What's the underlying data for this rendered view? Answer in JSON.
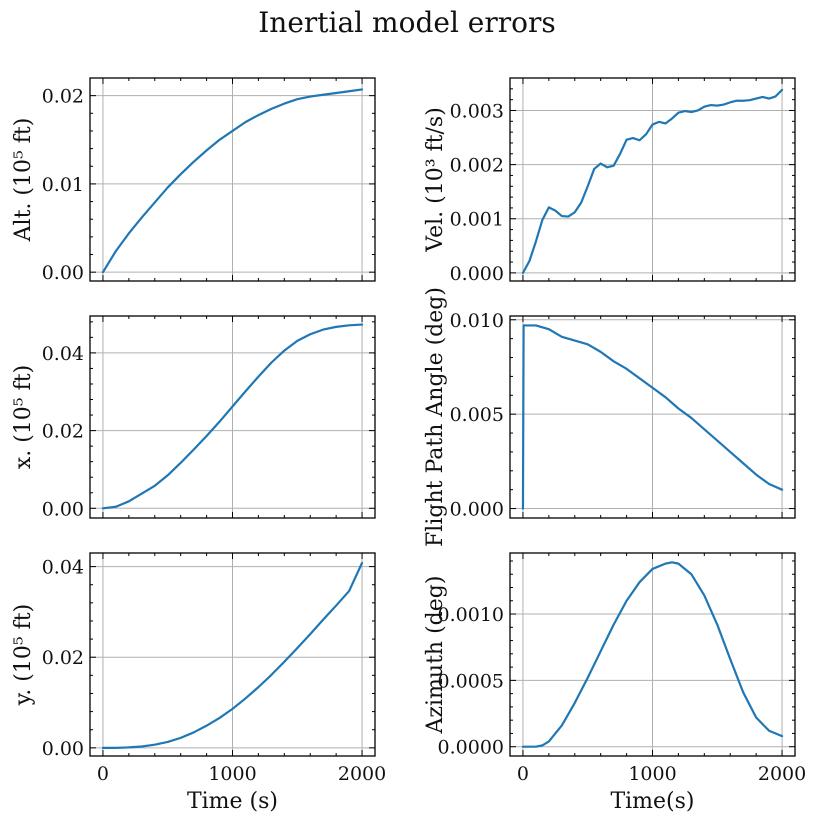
{
  "title": "Inertial model errors",
  "colors": {
    "line": "#1f77b4",
    "grid": "#b0b0b0",
    "axes": "#000000"
  },
  "chart_data": [
    {
      "type": "line",
      "ylabel": "Alt. (10⁵ ft)",
      "xlabel": "",
      "xlim": [
        -100,
        2100
      ],
      "ylim": [
        -0.001,
        0.022
      ],
      "xticks": [
        0,
        1000,
        2000
      ],
      "xticklabels": [
        "",
        "",
        ""
      ],
      "yticks": [
        0.0,
        0.01,
        0.02
      ],
      "yticklabels": [
        "0.00",
        "0.01",
        "0.02"
      ],
      "x": [
        0,
        100,
        200,
        300,
        400,
        500,
        600,
        700,
        800,
        900,
        1000,
        1100,
        1200,
        1300,
        1400,
        1500,
        1600,
        1700,
        1800,
        1900,
        2000
      ],
      "y": [
        0.0,
        0.0024,
        0.0044,
        0.0062,
        0.0079,
        0.0096,
        0.0111,
        0.0125,
        0.0138,
        0.015,
        0.016,
        0.017,
        0.0178,
        0.0185,
        0.0191,
        0.0196,
        0.0199,
        0.0201,
        0.0203,
        0.0205,
        0.0207
      ]
    },
    {
      "type": "line",
      "ylabel": "Vel. (10³ ft/s)",
      "xlabel": "",
      "xlim": [
        -100,
        2100
      ],
      "ylim": [
        -0.00015,
        0.0036
      ],
      "xticks": [
        0,
        1000,
        2000
      ],
      "xticklabels": [
        "",
        "",
        ""
      ],
      "yticks": [
        0.0,
        0.001,
        0.002,
        0.003
      ],
      "yticklabels": [
        "0.000",
        "0.001",
        "0.002",
        "0.003"
      ],
      "x": [
        0,
        50,
        100,
        150,
        200,
        250,
        300,
        350,
        400,
        450,
        500,
        550,
        600,
        650,
        700,
        750,
        800,
        850,
        900,
        950,
        1000,
        1050,
        1100,
        1150,
        1200,
        1250,
        1300,
        1350,
        1400,
        1450,
        1500,
        1550,
        1600,
        1650,
        1700,
        1750,
        1800,
        1850,
        1900,
        1950,
        2000
      ],
      "y": [
        0.0,
        0.00022,
        0.00058,
        0.00098,
        0.00121,
        0.00115,
        0.00105,
        0.00104,
        0.00112,
        0.0013,
        0.0016,
        0.00192,
        0.00202,
        0.00195,
        0.00198,
        0.0022,
        0.00246,
        0.00249,
        0.00245,
        0.00256,
        0.00274,
        0.00279,
        0.00276,
        0.00285,
        0.00296,
        0.00299,
        0.00297,
        0.003,
        0.00307,
        0.0031,
        0.00309,
        0.00311,
        0.00315,
        0.00318,
        0.00318,
        0.00319,
        0.00322,
        0.00325,
        0.00322,
        0.00326,
        0.00338
      ]
    },
    {
      "type": "line",
      "ylabel": "x. (10⁵ ft)",
      "xlabel": "",
      "xlim": [
        -100,
        2100
      ],
      "ylim": [
        -0.0025,
        0.0495
      ],
      "xticks": [
        0,
        1000,
        2000
      ],
      "xticklabels": [
        "",
        "",
        ""
      ],
      "yticks": [
        0.0,
        0.02,
        0.04
      ],
      "yticklabels": [
        "0.00",
        "0.02",
        "0.04"
      ],
      "x": [
        0,
        100,
        200,
        300,
        400,
        500,
        600,
        700,
        800,
        900,
        1000,
        1100,
        1200,
        1300,
        1400,
        1500,
        1600,
        1700,
        1800,
        1900,
        2000
      ],
      "y": [
        0.0,
        0.0004,
        0.0018,
        0.0038,
        0.0058,
        0.0085,
        0.0117,
        0.0151,
        0.0186,
        0.0223,
        0.0262,
        0.0301,
        0.0339,
        0.0375,
        0.0406,
        0.0431,
        0.0448,
        0.046,
        0.0467,
        0.0471,
        0.0473
      ]
    },
    {
      "type": "line",
      "ylabel": "Flight Path Angle (deg)",
      "xlabel": "",
      "xlim": [
        -100,
        2100
      ],
      "ylim": [
        -0.0005,
        0.0102
      ],
      "xticks": [
        0,
        1000,
        2000
      ],
      "xticklabels": [
        "",
        "",
        ""
      ],
      "yticks": [
        0.0,
        0.005,
        0.01
      ],
      "yticklabels": [
        "0.000",
        "0.005",
        "0.010"
      ],
      "x": [
        0,
        5,
        100,
        200,
        300,
        400,
        500,
        600,
        700,
        800,
        900,
        1000,
        1100,
        1200,
        1300,
        1400,
        1500,
        1600,
        1700,
        1800,
        1900,
        2000
      ],
      "y": [
        0.0,
        0.0097,
        0.0097,
        0.0095,
        0.0091,
        0.0089,
        0.0087,
        0.0083,
        0.0078,
        0.0074,
        0.0069,
        0.0064,
        0.0059,
        0.0053,
        0.0048,
        0.0042,
        0.0036,
        0.003,
        0.0024,
        0.0018,
        0.0013,
        0.001
      ]
    },
    {
      "type": "line",
      "ylabel": "y. (10⁵ ft)",
      "xlabel": "Time (s)",
      "xlim": [
        -100,
        2100
      ],
      "ylim": [
        -0.0018,
        0.043
      ],
      "xticks": [
        0,
        1000,
        2000
      ],
      "xticklabels": [
        "0",
        "1000",
        "2000"
      ],
      "yticks": [
        0.0,
        0.02,
        0.04
      ],
      "yticklabels": [
        "0.00",
        "0.02",
        "0.04"
      ],
      "x": [
        0,
        100,
        200,
        300,
        400,
        500,
        600,
        700,
        800,
        900,
        1000,
        1100,
        1200,
        1300,
        1400,
        1500,
        1600,
        1700,
        1800,
        1900,
        2000
      ],
      "y": [
        0.0,
        0.0,
        0.0001,
        0.0003,
        0.0007,
        0.0013,
        0.0022,
        0.0034,
        0.0049,
        0.0066,
        0.0086,
        0.0109,
        0.0134,
        0.0161,
        0.019,
        0.022,
        0.0251,
        0.0283,
        0.0314,
        0.0346,
        0.0408
      ]
    },
    {
      "type": "line",
      "ylabel": "Azimuth (deg)",
      "xlabel": "Time(s)",
      "xlim": [
        -100,
        2100
      ],
      "ylim": [
        -7e-05,
        0.00146
      ],
      "xticks": [
        0,
        1000,
        2000
      ],
      "xticklabels": [
        "0",
        "1000",
        "2000"
      ],
      "yticks": [
        0.0,
        0.0005,
        0.001
      ],
      "yticklabels": [
        "0.0000",
        "0.0005",
        "0.0010"
      ],
      "x": [
        0,
        100,
        150,
        200,
        300,
        400,
        500,
        600,
        700,
        800,
        900,
        1000,
        1100,
        1150,
        1200,
        1300,
        1400,
        1500,
        1600,
        1700,
        1800,
        1900,
        2000
      ],
      "y": [
        0.0,
        0.0,
        1e-05,
        4e-05,
        0.00016,
        0.00033,
        0.00052,
        0.00072,
        0.00092,
        0.0011,
        0.00124,
        0.00134,
        0.00138,
        0.00139,
        0.00138,
        0.0013,
        0.00114,
        0.00092,
        0.00066,
        0.00041,
        0.00022,
        0.00012,
        8e-05
      ]
    }
  ]
}
